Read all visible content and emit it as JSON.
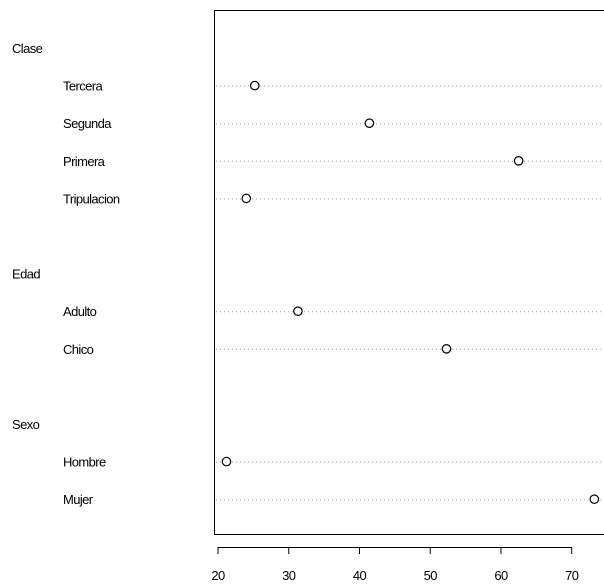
{
  "chart_data": {
    "type": "dotchart",
    "title": "",
    "xlabel": "",
    "ylabel": "",
    "xlim": [
      20,
      74
    ],
    "x_ticks": [
      20,
      30,
      40,
      50,
      60,
      70
    ],
    "x_tick_labels": [
      "20",
      "30",
      "40",
      "50",
      "60",
      "70"
    ],
    "point_style": "open circle",
    "guide_lines": "dotted",
    "groups": [
      {
        "name": "Clase",
        "items": [
          {
            "label": "Tercera",
            "value": 25.2
          },
          {
            "label": "Segunda",
            "value": 41.4
          },
          {
            "label": "Primera",
            "value": 62.5
          },
          {
            "label": "Tripulacion",
            "value": 24.0
          }
        ]
      },
      {
        "name": "Edad",
        "items": [
          {
            "label": "Adulto",
            "value": 31.3
          },
          {
            "label": "Chico",
            "value": 52.3
          }
        ]
      },
      {
        "name": "Sexo",
        "items": [
          {
            "label": "Hombre",
            "value": 21.2
          },
          {
            "label": "Mujer",
            "value": 73.2
          }
        ]
      }
    ]
  }
}
